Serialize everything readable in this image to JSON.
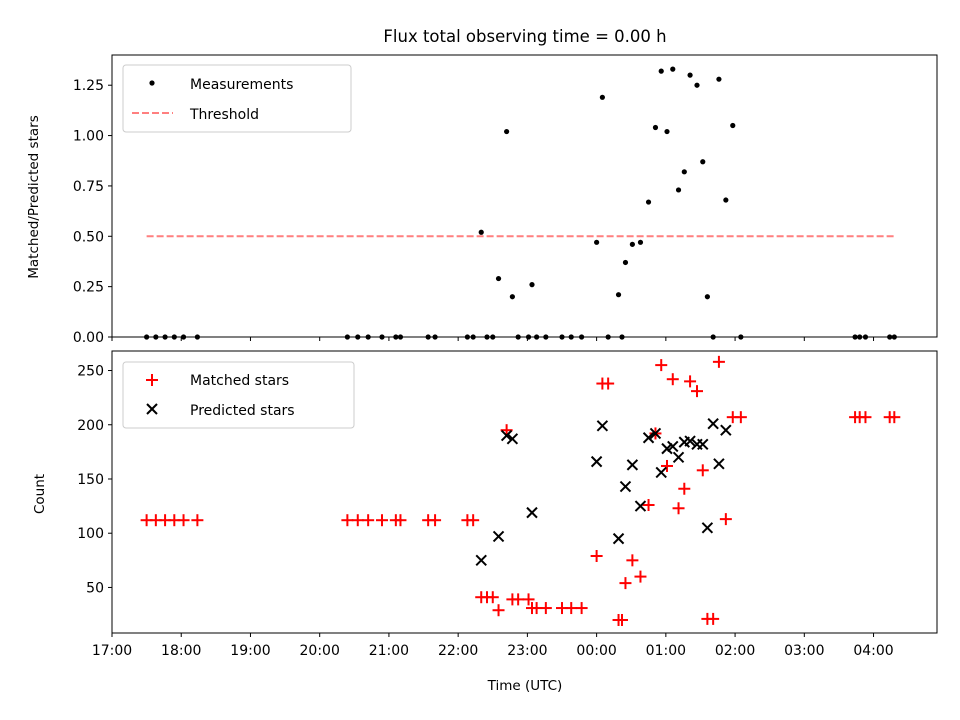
{
  "chart_data": [
    {
      "type": "scatter",
      "title": "Flux total observing time = 0.00 h",
      "xlabel": "",
      "ylabel": "Matched/Predicted stars",
      "xlim": [
        "17:00",
        "04:55"
      ],
      "ylim": [
        0,
        1.4
      ],
      "yticks": [
        0,
        0.25,
        0.5,
        0.75,
        1.0,
        1.25
      ],
      "yticklabels": [
        "0.00",
        "0.25",
        "0.50",
        "0.75",
        "1.00",
        "1.25"
      ],
      "legend_position": "top-left",
      "legend": [
        "Measurements",
        "Threshold"
      ],
      "series": [
        {
          "name": "Measurements",
          "marker": "dot",
          "color": "#000000",
          "x": [
            "17:30",
            "17:38",
            "17:46",
            "17:54",
            "18:02",
            "18:14",
            "20:24",
            "20:33",
            "20:42",
            "20:54",
            "21:06",
            "21:10",
            "21:34",
            "21:40",
            "22:08",
            "22:13",
            "22:20",
            "22:25",
            "22:30",
            "22:35",
            "22:42",
            "22:47",
            "22:52",
            "23:01",
            "23:04",
            "23:08",
            "23:16",
            "23:30",
            "23:38",
            "23:47",
            "24:00",
            "24:05",
            "24:10",
            "24:19",
            "24:22",
            "24:25",
            "24:31",
            "24:38",
            "24:45",
            "24:51",
            "24:56",
            "25:01",
            "25:06",
            "25:11",
            "25:16",
            "25:21",
            "25:27",
            "25:32",
            "25:36",
            "25:41",
            "25:46",
            "25:52",
            "25:58",
            "26:05",
            "27:44",
            "27:48",
            "27:53",
            "28:14",
            "28:18"
          ],
          "y": [
            0,
            0,
            0,
            0,
            0,
            0,
            0,
            0,
            0,
            0,
            0,
            0,
            0,
            0,
            0,
            0,
            0.52,
            0,
            0,
            0.29,
            1.02,
            0.2,
            0,
            0,
            0.26,
            0,
            0,
            0,
            0,
            0,
            0.47,
            1.19,
            0,
            0.21,
            0,
            0.37,
            0.46,
            0.47,
            0.67,
            1.04,
            1.32,
            1.02,
            1.33,
            0.73,
            0.82,
            1.3,
            1.25,
            0.87,
            0.2,
            0,
            1.28,
            0.68,
            1.05,
            0,
            0,
            0,
            0,
            0,
            0
          ]
        },
        {
          "name": "Threshold",
          "style": "dashed",
          "color": "#ff7f7f",
          "x": [
            "17:30",
            "04:20"
          ],
          "y": [
            0.5,
            0.5
          ]
        }
      ]
    },
    {
      "type": "scatter",
      "title": "",
      "xlabel": "Time (UTC)",
      "ylabel": "Count",
      "xlim": [
        "17:00",
        "04:55"
      ],
      "ylim": [
        8,
        268
      ],
      "yticks": [
        50,
        100,
        150,
        200,
        250
      ],
      "xticks": [
        "17:00",
        "18:00",
        "19:00",
        "20:00",
        "21:00",
        "22:00",
        "23:00",
        "00:00",
        "01:00",
        "02:00",
        "03:00",
        "04:00"
      ],
      "legend_position": "top-left",
      "legend": [
        "Matched stars",
        "Predicted stars"
      ],
      "series": [
        {
          "name": "Matched stars",
          "marker": "plus",
          "color": "#ff0000",
          "x": [
            "17:30",
            "17:38",
            "17:46",
            "17:54",
            "18:02",
            "18:14",
            "20:24",
            "20:33",
            "20:42",
            "20:54",
            "21:06",
            "21:10",
            "21:34",
            "21:40",
            "22:08",
            "22:13",
            "22:20",
            "22:25",
            "22:30",
            "22:35",
            "22:42",
            "22:47",
            "22:52",
            "23:01",
            "23:04",
            "23:08",
            "23:16",
            "23:30",
            "23:38",
            "23:47",
            "24:00",
            "24:05",
            "24:10",
            "24:19",
            "24:22",
            "24:25",
            "24:31",
            "24:38",
            "24:45",
            "24:51",
            "24:56",
            "25:01",
            "25:06",
            "25:11",
            "25:16",
            "25:21",
            "25:27",
            "25:32",
            "25:36",
            "25:41",
            "25:46",
            "25:52",
            "25:58",
            "26:05",
            "27:44",
            "27:48",
            "27:53",
            "28:14",
            "28:18"
          ],
          "y": [
            112,
            112,
            112,
            112,
            112,
            112,
            112,
            112,
            112,
            112,
            112,
            112,
            112,
            112,
            112,
            112,
            41,
            41,
            41,
            29,
            195,
            39,
            39,
            39,
            31,
            31,
            31,
            31,
            31,
            31,
            79,
            238,
            238,
            20,
            20,
            54,
            75,
            60,
            126,
            192,
            255,
            162,
            242,
            123,
            141,
            240,
            231,
            158,
            21,
            21,
            258,
            113,
            207,
            207,
            207,
            207,
            207,
            207,
            207
          ]
        },
        {
          "name": "Predicted stars",
          "marker": "x",
          "color": "#000000",
          "x": [
            "22:20",
            "22:35",
            "22:42",
            "22:47",
            "23:04",
            "24:00",
            "24:05",
            "24:19",
            "24:25",
            "24:31",
            "24:38",
            "24:45",
            "24:51",
            "24:56",
            "25:01",
            "25:06",
            "25:11",
            "25:16",
            "25:21",
            "25:27",
            "25:32",
            "25:36",
            "25:41",
            "25:46",
            "25:52"
          ],
          "y": [
            75,
            97,
            190,
            187,
            119,
            166,
            199,
            95,
            143,
            163,
            125,
            188,
            192,
            156,
            178,
            180,
            170,
            184,
            185,
            182,
            182,
            105,
            201,
            164,
            195
          ]
        }
      ]
    }
  ]
}
